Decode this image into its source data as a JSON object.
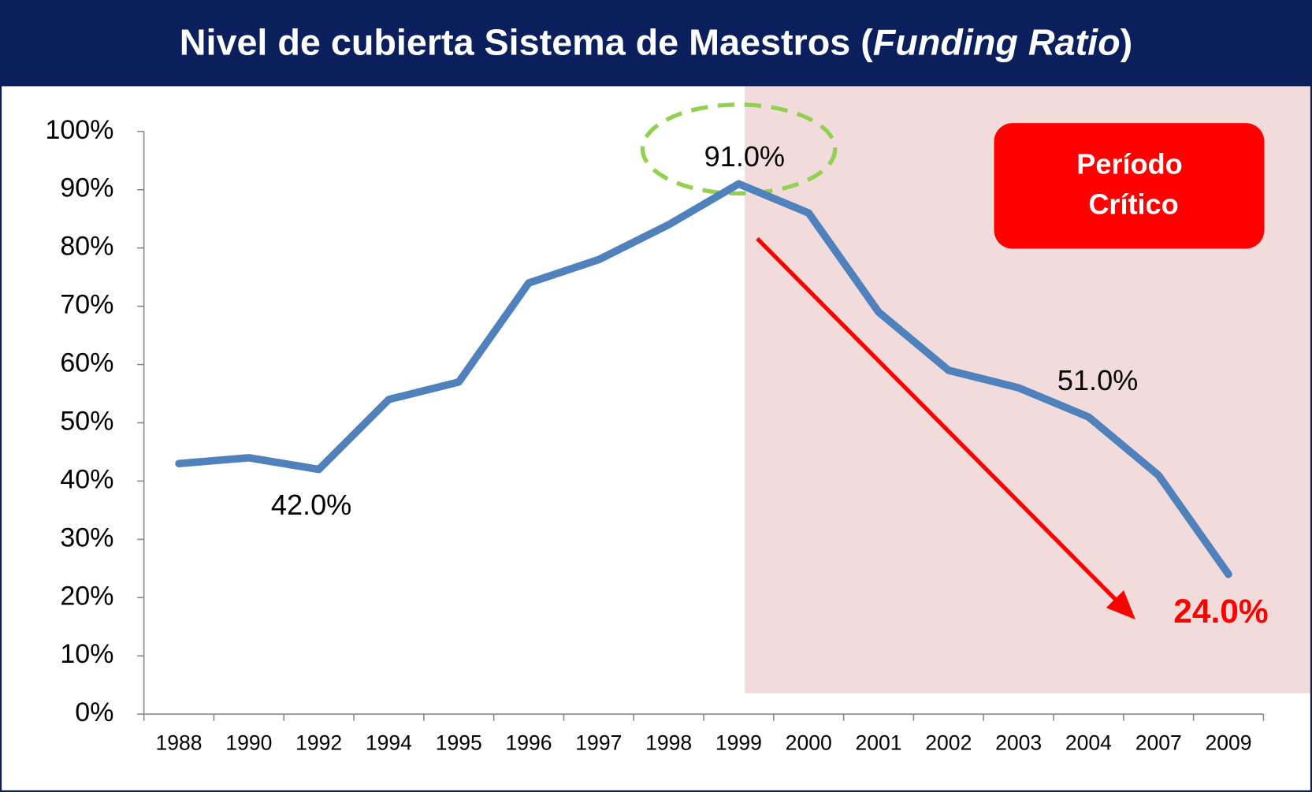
{
  "chart_data": {
    "type": "line",
    "title": "Nivel de cubierta Sistema de Maestros (Funding Ratio)",
    "title_italic": "Funding Ratio",
    "annotation": "Período Crítico",
    "categories": [
      "1988",
      "1990",
      "1992",
      "1994",
      "1995",
      "1996",
      "1997",
      "1998",
      "1999",
      "2000",
      "2001",
      "2002",
      "2003",
      "2004",
      "2007",
      "2009"
    ],
    "series": [
      {
        "color": "#4f81bd",
        "values": [
          43,
          44,
          42,
          54,
          57,
          74,
          78,
          84,
          91,
          86,
          69,
          59,
          56,
          51,
          41,
          24
        ],
        "value_labels": [
          null,
          null,
          "42.0%",
          null,
          null,
          null,
          null,
          null,
          "91.0%",
          null,
          null,
          null,
          null,
          "51.0%",
          null,
          "24.0%"
        ]
      }
    ],
    "ylim": [
      0,
      100
    ],
    "yticks": [
      {
        "value": 0,
        "label": "0%"
      },
      {
        "value": 10,
        "label": "10%"
      },
      {
        "value": 20,
        "label": "20%"
      },
      {
        "value": 30,
        "label": "30%"
      },
      {
        "value": 40,
        "label": "40%"
      },
      {
        "value": 50,
        "label": "50%"
      },
      {
        "value": 60,
        "label": "60%"
      },
      {
        "value": 70,
        "label": "70%"
      },
      {
        "value": 80,
        "label": "80%"
      },
      {
        "value": 90,
        "label": "90%"
      },
      {
        "value": 100,
        "label": "100%"
      }
    ]
  }
}
